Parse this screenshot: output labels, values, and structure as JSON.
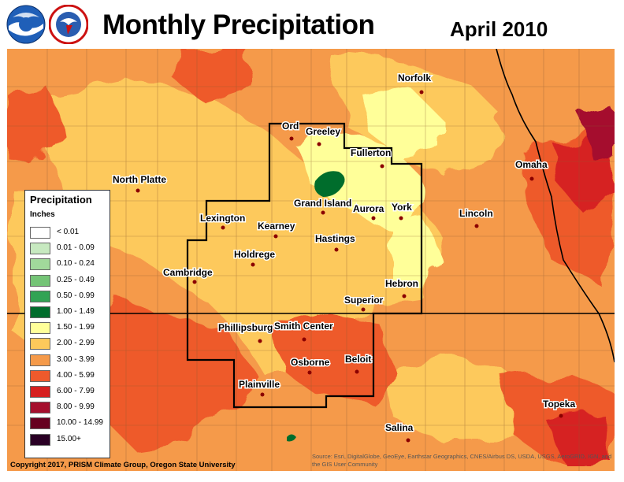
{
  "header": {
    "title": "Monthly Precipitation",
    "date": "April 2010"
  },
  "colors": {
    "range_0": "#ffffff",
    "range_1": "#c7e9c0",
    "range_2": "#a1d99b",
    "range_3": "#74c476",
    "range_4": "#31a354",
    "range_5": "#006d2c",
    "range_6": "#ffff99",
    "range_7": "#fdc95b",
    "range_8": "#f59a4a",
    "range_9": "#ee5a2c",
    "range_10": "#d62020",
    "range_11": "#a50f2d",
    "range_12": "#67001f",
    "range_13": "#2a0025",
    "boundary": "#000000"
  },
  "legend": {
    "title": "Precipitation",
    "units": "Inches",
    "ranges": [
      "< 0.01",
      "0.01 - 0.09",
      "0.10 - 0.24",
      "0.25 - 0.49",
      "0.50 - 0.99",
      "1.00 - 1.49",
      "1.50 - 1.99",
      "2.00 - 2.99",
      "3.00 - 3.99",
      "4.00 - 5.99",
      "6.00 - 7.99",
      "8.00 - 9.99",
      "10.00 - 14.99",
      "15.00+"
    ]
  },
  "cities": [
    "Norfolk",
    "Ord",
    "Greeley",
    "Fullerton",
    "North Platte",
    "Omaha",
    "Lexington",
    "Grand Island",
    "Aurora",
    "York",
    "Lincoln",
    "Kearney",
    "Hastings",
    "Holdrege",
    "Cambridge",
    "Hebron",
    "Superior",
    "Phillipsburg",
    "Smith Center",
    "Osborne",
    "Beloit",
    "Plainville",
    "Topeka",
    "Salina"
  ],
  "footer": {
    "copyright": "Copyright 2017, PRISM Climate Group, Oregon State University",
    "source": "Source: Esri, DigitalGlobe, GeoEye, Earthstar Geographics, CNES/Airbus DS, USDA, USGS, AeroGRID, IGN, and the GIS User Community"
  }
}
